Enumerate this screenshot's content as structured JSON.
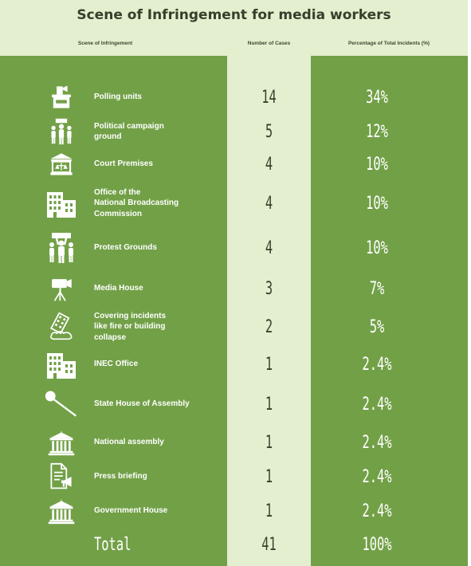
{
  "title": "Scene of Infringement for media workers",
  "columns": [
    "Scene of Infringement",
    "Number of Cases",
    "Percentage of Total Incidents (%)"
  ],
  "colors": {
    "header_bg": "#e3efce",
    "body_bg": "#72a047",
    "cases_column": "#e3efce",
    "text_dark": "#37412d",
    "text_light": "#ffffff"
  },
  "chart_data": {
    "type": "table",
    "title": "Scene of Infringement for media workers",
    "columns": [
      "Scene of Infringement",
      "Number of Cases",
      "Percentage of Total Incidents (%)"
    ],
    "rows": [
      {
        "scene": [
          "Polling units"
        ],
        "icon": "ballot-box-icon",
        "cases": "14",
        "percent": "34%"
      },
      {
        "scene": [
          "Political campaign",
          "ground"
        ],
        "icon": "campaign-crowd-icon",
        "cases": "5",
        "percent": "12%"
      },
      {
        "scene": [
          "Court Premises"
        ],
        "icon": "courthouse-icon",
        "cases": "4",
        "percent": "10%"
      },
      {
        "scene": [
          "Office of the",
          "National Broadcasting",
          "Commission"
        ],
        "icon": "office-building-icon",
        "cases": "4",
        "percent": "10%"
      },
      {
        "scene": [
          "Protest Grounds"
        ],
        "icon": "protest-crowd-icon",
        "cases": "4",
        "percent": "10%"
      },
      {
        "scene": [
          "Media House"
        ],
        "icon": "video-camera-icon",
        "cases": "3",
        "percent": "7%"
      },
      {
        "scene": [
          "Covering incidents",
          "like fire or building",
          "collapse"
        ],
        "icon": "collapsing-building-icon",
        "cases": "2",
        "percent": "5%"
      },
      {
        "scene": [
          "INEC Office"
        ],
        "icon": "office-building-icon",
        "cases": "1",
        "percent": "2.4%"
      },
      {
        "scene": [
          "State House of Assembly"
        ],
        "icon": "gavel-icon",
        "cases": "1",
        "percent": "2.4%"
      },
      {
        "scene": [
          "National assembly"
        ],
        "icon": "government-building-icon",
        "cases": "1",
        "percent": "2.4%"
      },
      {
        "scene": [
          "Press briefing"
        ],
        "icon": "press-release-icon",
        "cases": "1",
        "percent": "2.4%"
      },
      {
        "scene": [
          "Government House"
        ],
        "icon": "government-building-icon",
        "cases": "1",
        "percent": "2.4%"
      }
    ],
    "total": {
      "label": "Total",
      "cases": "41",
      "percent": "100%"
    }
  }
}
